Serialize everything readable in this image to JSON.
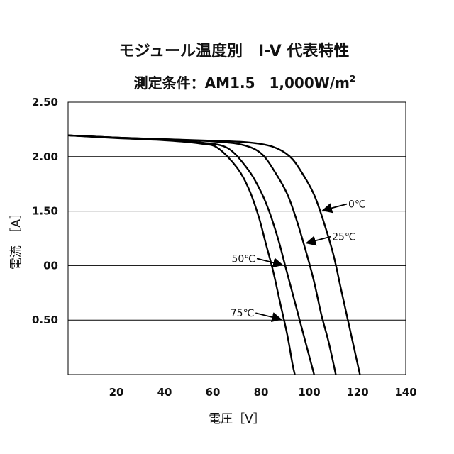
{
  "chart_data": {
    "type": "line",
    "title": "モジュール温度別　I-V 代表特性",
    "subtitle_main": "測定条件：AM1.5　1,000W/m",
    "subtitle_sup": "2",
    "xlabel": "電圧［V］",
    "ylabel": "電流　［A］",
    "xlim": [
      0,
      140
    ],
    "ylim": [
      0,
      2.5
    ],
    "grid": "horizontal",
    "x_ticks": [
      {
        "value": 20,
        "label": "20"
      },
      {
        "value": 40,
        "label": "40"
      },
      {
        "value": 60,
        "label": "60"
      },
      {
        "value": 80,
        "label": "80"
      },
      {
        "value": 100,
        "label": "100"
      },
      {
        "value": 120,
        "label": "120"
      },
      {
        "value": 140,
        "label": "140"
      }
    ],
    "y_ticks": [
      {
        "value": 0.5,
        "label": "0.50"
      },
      {
        "value": 1.0,
        "label": "00"
      },
      {
        "value": 1.5,
        "label": "1.50"
      },
      {
        "value": 2.0,
        "label": "2.00"
      },
      {
        "value": 2.5,
        "label": "2.50"
      }
    ],
    "series": [
      {
        "name": "0℃",
        "color": "#000000",
        "points": [
          [
            0,
            2.195
          ],
          [
            20,
            2.175
          ],
          [
            40,
            2.16
          ],
          [
            60,
            2.145
          ],
          [
            75,
            2.13
          ],
          [
            85,
            2.09
          ],
          [
            92,
            2.0
          ],
          [
            97,
            1.85
          ],
          [
            102,
            1.65
          ],
          [
            106,
            1.4
          ],
          [
            110,
            1.1
          ],
          [
            113,
            0.8
          ],
          [
            116,
            0.5
          ],
          [
            118.5,
            0.25
          ],
          [
            121,
            0.0
          ]
        ]
      },
      {
        "name": "25℃",
        "color": "#000000",
        "points": [
          [
            0,
            2.195
          ],
          [
            20,
            2.175
          ],
          [
            40,
            2.16
          ],
          [
            60,
            2.14
          ],
          [
            72,
            2.11
          ],
          [
            80,
            2.03
          ],
          [
            86,
            1.85
          ],
          [
            91,
            1.65
          ],
          [
            95,
            1.4
          ],
          [
            99,
            1.1
          ],
          [
            102,
            0.85
          ],
          [
            105,
            0.55
          ],
          [
            108,
            0.3
          ],
          [
            111,
            0.0
          ]
        ]
      },
      {
        "name": "50℃",
        "color": "#000000",
        "points": [
          [
            0,
            2.195
          ],
          [
            20,
            2.175
          ],
          [
            40,
            2.155
          ],
          [
            55,
            2.13
          ],
          [
            66,
            2.08
          ],
          [
            74,
            1.9
          ],
          [
            79,
            1.72
          ],
          [
            83,
            1.52
          ],
          [
            87,
            1.25
          ],
          [
            90,
            1.0
          ],
          [
            93,
            0.75
          ],
          [
            96,
            0.5
          ],
          [
            99,
            0.25
          ],
          [
            102,
            0.0
          ]
        ]
      },
      {
        "name": "75℃",
        "color": "#000000",
        "points": [
          [
            0,
            2.195
          ],
          [
            20,
            2.17
          ],
          [
            40,
            2.15
          ],
          [
            55,
            2.12
          ],
          [
            62,
            2.08
          ],
          [
            70,
            1.9
          ],
          [
            75,
            1.7
          ],
          [
            79,
            1.45
          ],
          [
            82,
            1.2
          ],
          [
            85,
            0.95
          ],
          [
            88,
            0.65
          ],
          [
            91,
            0.35
          ],
          [
            93,
            0.1
          ],
          [
            94,
            0.0
          ]
        ]
      }
    ],
    "annotations": [
      {
        "text": "0℃",
        "series": "0℃",
        "at_i": 1.5
      },
      {
        "text": "25℃",
        "series": "25℃",
        "at_i": 1.2
      },
      {
        "text": "50℃",
        "series": "50℃",
        "at_i": 1.0
      },
      {
        "text": "75℃",
        "series": "75℃",
        "at_i": 0.5
      }
    ]
  }
}
